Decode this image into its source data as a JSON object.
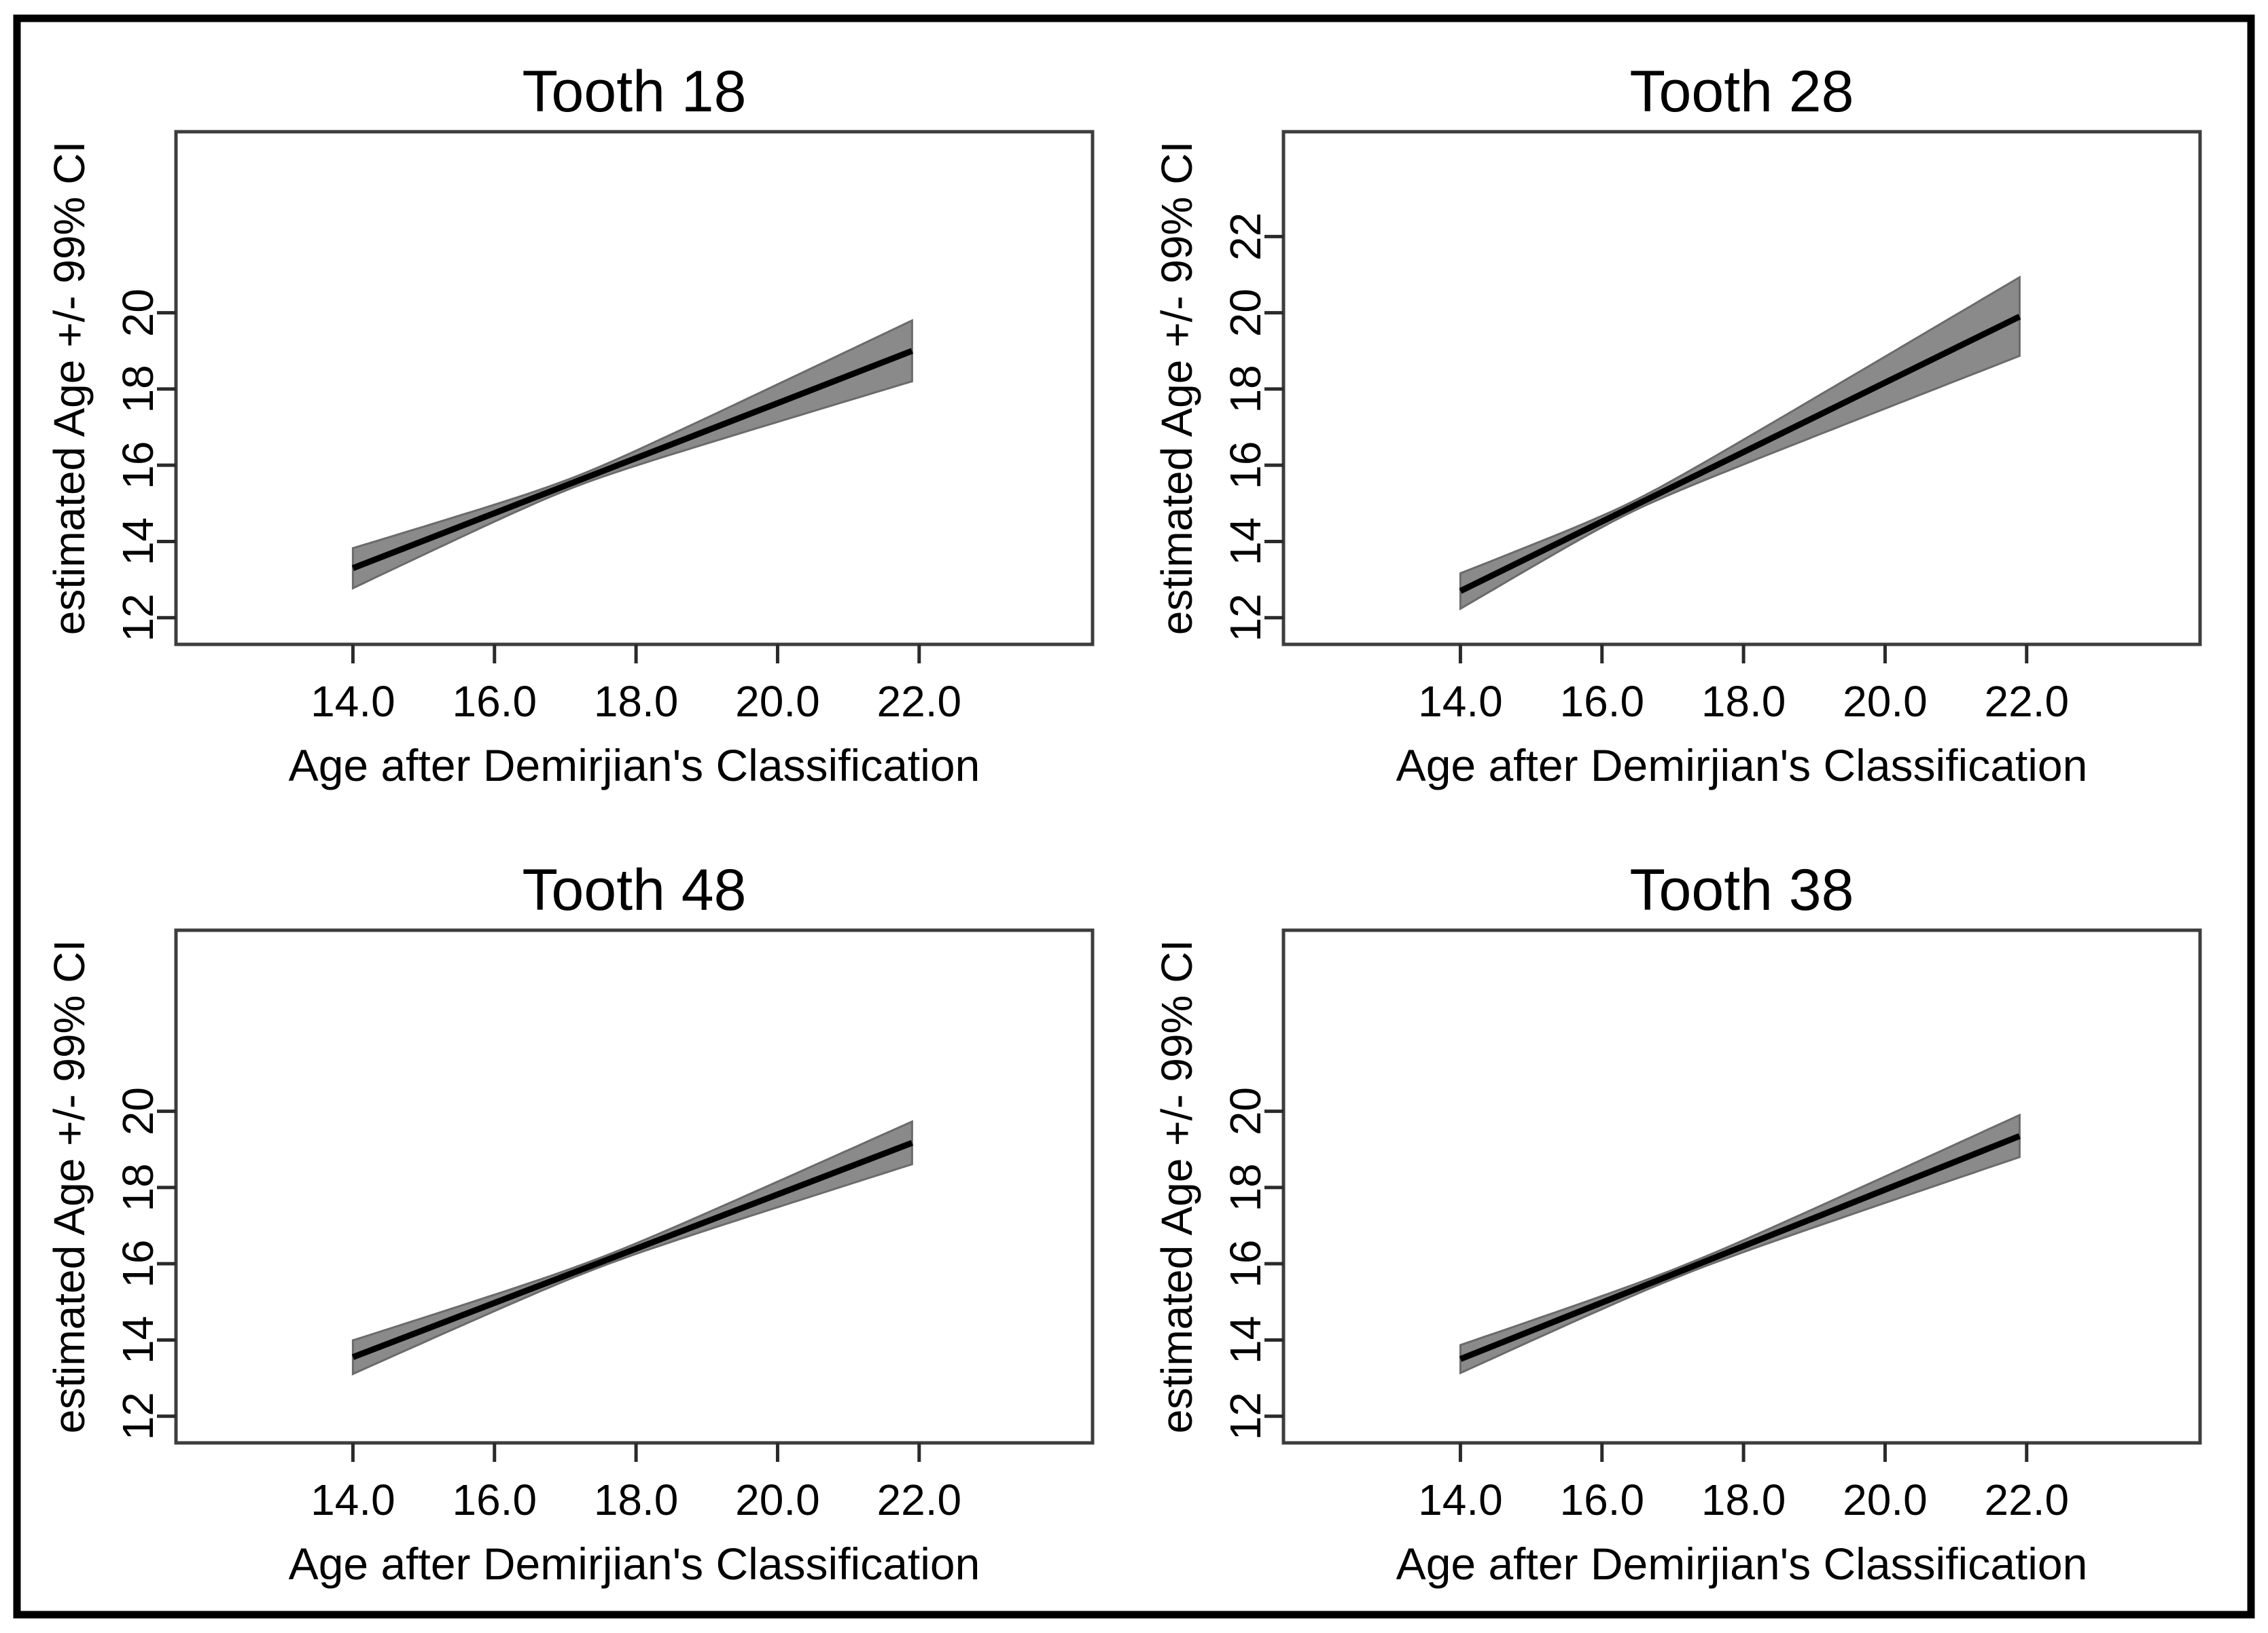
{
  "figure": {
    "outer_border_color": "#000000",
    "background": "#ffffff"
  },
  "styles": {
    "band_fill": "#8a8a8a",
    "band_edge": "#6b6b6b",
    "line_color": "#000000",
    "box_color": "#3d3d3d",
    "tick_color": "#2a2a2a",
    "text_color": "#000000"
  },
  "chart_data": [
    {
      "type": "line",
      "position": "top-left",
      "title": "Tooth 18",
      "xlabel": "Age after Demirjian's Classification",
      "ylabel": "estimated Age +/- 99% CI",
      "xlim": [
        11.5,
        24.45
      ],
      "ylim": [
        11.3,
        24.75
      ],
      "grid": false,
      "x_ticks": [
        14.0,
        16.0,
        18.0,
        20.0,
        22.0
      ],
      "x_tick_labels": [
        "14.0",
        "16.0",
        "18.0",
        "20.0",
        "22.0"
      ],
      "y_ticks": [
        12,
        14,
        16,
        18,
        20
      ],
      "y_tick_labels": [
        "12",
        "14",
        "16",
        "18",
        "20"
      ],
      "series": {
        "name": "linear fit with 99% confidence band",
        "x_start": 14.0,
        "x_end": 21.9,
        "y_start": 13.3,
        "y_end": 19.0,
        "ci_band": {
          "pinch_x": 17.1,
          "min_half_width": 0.13,
          "spread_rate": 0.164,
          "half_width_at_start": 0.51,
          "half_width_at_end": 0.8
        }
      }
    },
    {
      "type": "line",
      "position": "top-right",
      "title": "Tooth 28",
      "xlabel": "Age after Demirjian's Classification",
      "ylabel": "estimated Age +/- 99% CI",
      "xlim": [
        11.5,
        24.45
      ],
      "ylim": [
        11.3,
        24.75
      ],
      "grid": false,
      "x_ticks": [
        14.0,
        16.0,
        18.0,
        20.0,
        22.0
      ],
      "x_tick_labels": [
        "14.0",
        "16.0",
        "18.0",
        "20.0",
        "22.0"
      ],
      "y_ticks": [
        12,
        14,
        16,
        18,
        20,
        22
      ],
      "y_tick_labels": [
        "12",
        "14",
        "16",
        "18",
        "20",
        "22"
      ],
      "series": {
        "name": "linear fit with 99% confidence band",
        "x_start": 14.0,
        "x_end": 21.9,
        "y_start": 12.7,
        "y_end": 19.9,
        "ci_band": {
          "pinch_x": 16.4,
          "min_half_width": 0.13,
          "spread_rate": 0.186,
          "half_width_at_start": 0.46,
          "half_width_at_end": 1.03
        }
      }
    },
    {
      "type": "line",
      "position": "bottom-left",
      "title": "Tooth 48",
      "xlabel": "Age after Demirjian's Classification",
      "ylabel": "estimated Age +/- 99% CI",
      "xlim": [
        11.5,
        24.45
      ],
      "ylim": [
        11.3,
        24.75
      ],
      "grid": false,
      "x_ticks": [
        14.0,
        16.0,
        18.0,
        20.0,
        22.0
      ],
      "x_tick_labels": [
        "14.0",
        "16.0",
        "18.0",
        "20.0",
        "22.0"
      ],
      "y_ticks": [
        12,
        14,
        16,
        18,
        20
      ],
      "y_tick_labels": [
        "12",
        "14",
        "16",
        "18",
        "20"
      ],
      "series": {
        "name": "linear fit with 99% confidence band",
        "x_start": 14.0,
        "x_end": 21.9,
        "y_start": 13.55,
        "y_end": 19.17,
        "ci_band": {
          "pinch_x": 17.45,
          "min_half_width": 0.12,
          "spread_rate": 0.123,
          "half_width_at_start": 0.44,
          "half_width_at_end": 0.56
        }
      }
    },
    {
      "type": "line",
      "position": "bottom-right",
      "title": "Tooth 38",
      "xlabel": "Age after Demirjian's Classification",
      "ylabel": "estimated Age +/- 99% CI",
      "xlim": [
        11.5,
        24.45
      ],
      "ylim": [
        11.3,
        24.75
      ],
      "grid": false,
      "x_ticks": [
        14.0,
        16.0,
        18.0,
        20.0,
        22.0
      ],
      "x_tick_labels": [
        "14.0",
        "16.0",
        "18.0",
        "20.0",
        "22.0"
      ],
      "y_ticks": [
        12,
        14,
        16,
        18,
        20
      ],
      "y_tick_labels": [
        "12",
        "14",
        "16",
        "18",
        "20"
      ],
      "series": {
        "name": "linear fit with 99% confidence band",
        "x_start": 14.0,
        "x_end": 21.9,
        "y_start": 13.5,
        "y_end": 19.35,
        "ci_band": {
          "pinch_x": 17.1,
          "min_half_width": 0.12,
          "spread_rate": 0.112,
          "half_width_at_start": 0.37,
          "half_width_at_end": 0.55
        }
      }
    }
  ]
}
